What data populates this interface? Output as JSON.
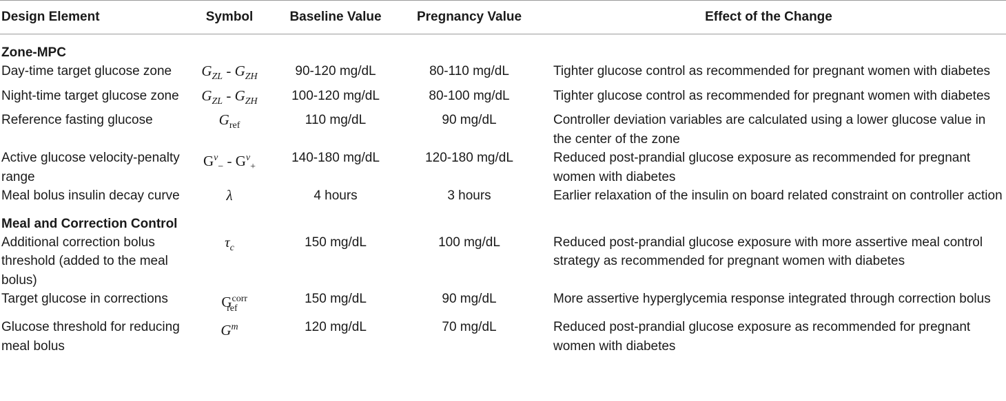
{
  "table": {
    "headers": [
      "Design Element",
      "Symbol",
      "Baseline Value",
      "Pregnancy Value",
      "Effect of the Change"
    ],
    "sections": [
      {
        "title": "Zone-MPC",
        "rows": [
          {
            "element": "Day-time target glucose zone",
            "baseline": "90-120 mg/dL",
            "pregnancy": "80-110 mg/dL",
            "effect": "Tighter glucose control as recommended for pregnant women with diabetes"
          },
          {
            "element": "Night-time target glucose zone",
            "baseline": "100-120 mg/dL",
            "pregnancy": "80-100 mg/dL",
            "effect": "Tighter glucose control as recommended for pregnant women with diabetes"
          },
          {
            "element": "Reference fasting glucose",
            "baseline": "110 mg/dL",
            "pregnancy": "90 mg/dL",
            "effect": "Controller deviation variables are calculated using a lower glucose value in the center of the zone"
          },
          {
            "element": "Active glucose velocity-penalty range",
            "baseline": "140-180 mg/dL",
            "pregnancy": "120-180 mg/dL",
            "effect": "Reduced post-prandial glucose exposure as recommended for pregnant women with diabetes"
          },
          {
            "element": "Meal bolus insulin decay curve",
            "baseline": "4 hours",
            "pregnancy": "3 hours",
            "effect": "Earlier relaxation of the insulin on board related constraint on controller action"
          }
        ]
      },
      {
        "title": "Meal and Correction Control",
        "rows": [
          {
            "element": "Additional correction bolus threshold (added to the meal bolus)",
            "baseline": "150 mg/dL",
            "pregnancy": "100 mg/dL",
            "effect": "Reduced post-prandial glucose exposure with more assertive meal control strategy as recommended for pregnant women with diabetes"
          },
          {
            "element": "Target glucose in corrections",
            "baseline": "150 mg/dL",
            "pregnancy": "90 mg/dL",
            "effect": "More assertive hyperglycemia response integrated through correction bolus"
          },
          {
            "element": "Glucose threshold for reducing meal bolus",
            "baseline": "120 mg/dL",
            "pregnancy": "70 mg/dL",
            "effect": "Reduced post-prandial glucose exposure as recommended for pregnant women with diabetes"
          }
        ]
      }
    ],
    "symbols": {
      "G": "G",
      "ZL": "ZL",
      "ZH": "ZH",
      "dash": " - ",
      "ref": "ref",
      "corr": "corr",
      "v": "v",
      "minus": "−",
      "plus": "+",
      "lambda": "λ",
      "tau": "τ",
      "c": "c",
      "m": "m"
    }
  }
}
